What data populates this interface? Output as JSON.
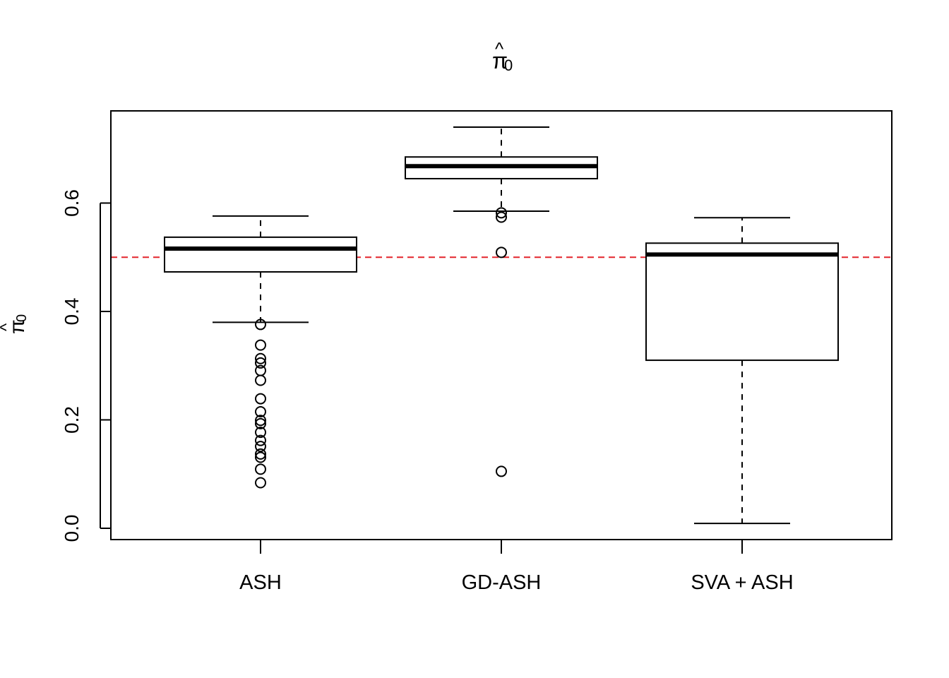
{
  "chart_data": {
    "type": "boxplot",
    "title": "π̂₀",
    "title_base": "π",
    "title_hat": "^",
    "title_subscript": "0",
    "xlabel": "",
    "ylabel": "π̂₀",
    "ylabel_base": "π",
    "ylabel_hat": "^",
    "ylabel_subscript": "0",
    "ylim": [
      -0.02,
      0.77
    ],
    "yticks": [
      0.0,
      0.2,
      0.4,
      0.6
    ],
    "ytick_labels": [
      "0.0",
      "0.2",
      "0.4",
      "0.6"
    ],
    "categories": [
      "ASH",
      "GD-ASH",
      "SVA + ASH"
    ],
    "boxes": [
      {
        "name": "ASH",
        "whisker_low": 0.38,
        "q1": 0.473,
        "median": 0.516,
        "q3": 0.537,
        "whisker_high": 0.576,
        "outliers": [
          0.376,
          0.338,
          0.313,
          0.305,
          0.291,
          0.273,
          0.239,
          0.215,
          0.199,
          0.193,
          0.177,
          0.162,
          0.151,
          0.137,
          0.131,
          0.109,
          0.084
        ]
      },
      {
        "name": "GD-ASH",
        "whisker_low": 0.585,
        "q1": 0.645,
        "median": 0.668,
        "q3": 0.685,
        "whisker_high": 0.74,
        "outliers": [
          0.582,
          0.574,
          0.509,
          0.105
        ]
      },
      {
        "name": "SVA + ASH",
        "whisker_low": 0.009,
        "q1": 0.31,
        "median": 0.505,
        "q3": 0.526,
        "whisker_high": 0.573,
        "outliers": []
      }
    ],
    "reference_line": {
      "y": 0.5,
      "color": "#e3242b",
      "style": "dashed"
    },
    "box_fill": "#ffffff",
    "line_color": "#000000",
    "grid": false,
    "legend": "none"
  }
}
